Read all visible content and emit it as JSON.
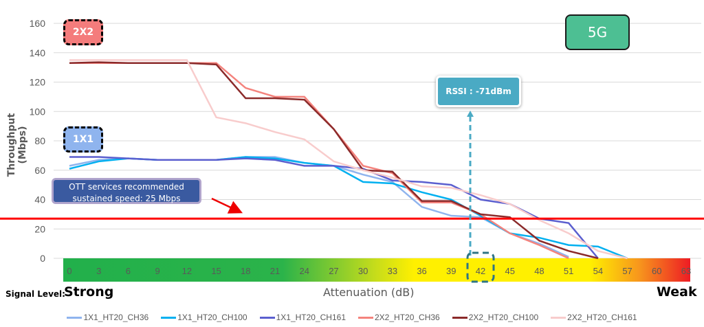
{
  "chart_data": {
    "type": "line",
    "title": "",
    "xlabel": "Attenuation (dB)",
    "ylabel": "Throughput (Mbps)",
    "ylim": [
      0,
      160
    ],
    "yticks": [
      0,
      20,
      40,
      60,
      80,
      100,
      120,
      140,
      160
    ],
    "x": [
      0,
      3,
      6,
      9,
      12,
      15,
      18,
      21,
      24,
      27,
      30,
      33,
      36,
      39,
      42,
      45,
      48,
      51,
      54,
      57,
      60,
      63
    ],
    "grid": true,
    "legend_position": "bottom",
    "series": [
      {
        "name": "1X1_HT20_CH36",
        "color": "#8fb4ee",
        "values": [
          63,
          67,
          68,
          67,
          67,
          67,
          69,
          69,
          65,
          63,
          57,
          52,
          35,
          29,
          28,
          17,
          10,
          1,
          null,
          null,
          null,
          null
        ]
      },
      {
        "name": "1X1_HT20_CH100",
        "color": "#00b0f0",
        "values": [
          61,
          66,
          68,
          67,
          67,
          67,
          69,
          68,
          65,
          63,
          52,
          51,
          45,
          40,
          29,
          17,
          14,
          9,
          8,
          0,
          null,
          null
        ]
      },
      {
        "name": "1X1_HT20_CH161",
        "color": "#5b5fcf",
        "values": [
          69,
          69,
          68,
          67,
          67,
          67,
          68,
          67,
          63,
          63,
          61,
          53,
          52,
          50,
          40,
          37,
          27,
          24,
          0,
          null,
          null,
          null
        ]
      },
      {
        "name": "2X2_HT20_CH36",
        "color": "#f4837d",
        "values": [
          133,
          133,
          133,
          133,
          133,
          133,
          116,
          110,
          110,
          88,
          63,
          58,
          38,
          38,
          30,
          17,
          9,
          0,
          null,
          null,
          null,
          null
        ]
      },
      {
        "name": "2X2_HT20_CH100",
        "color": "#8b2a2a",
        "values": [
          133,
          133.5,
          133,
          133,
          133,
          132,
          109,
          109,
          108,
          88,
          60,
          59,
          39,
          39,
          30,
          28,
          12,
          5,
          0,
          null,
          null,
          null
        ]
      },
      {
        "name": "2X2_HT20_CH161",
        "color": "#f8cccc",
        "values": [
          135,
          135,
          135,
          135,
          135,
          96,
          92,
          86,
          81,
          66,
          60,
          55,
          49,
          48,
          43,
          37,
          26,
          17,
          5,
          0,
          null,
          null
        ]
      }
    ],
    "reference_line": {
      "value": 27,
      "color": "#ff0000"
    },
    "annotations": {
      "band_2x2": "2X2",
      "band_1x1": "1X1",
      "frequency": "5G",
      "ott_note_line1": "OTT services recommended",
      "ott_note_line2": "sustained speed: 25 Mbps",
      "rssi": "RSSI : -71dBm",
      "rssi_at_x": 42,
      "signal_level_label": "Signal Level:",
      "strong": "Strong",
      "weak": "Weak"
    }
  }
}
